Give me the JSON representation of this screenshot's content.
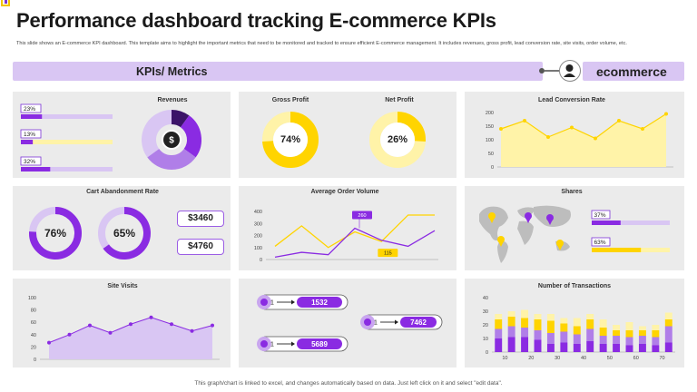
{
  "header": {
    "title": "Performance dashboard tracking E-commerce KPIs",
    "description": "This slide shows an E-commerce KPI dashboard. This template aims to highlight the important metrics that need to be monitored and tracked to ensure efficient E-commerce management.  It includes revenues, gross profit, lead conversion rate, site visits, order volume, etc.",
    "left_banner": "KPIs/ Metrics",
    "right_banner": "ecommerce"
  },
  "colors": {
    "purple": "#8a2be2",
    "dark_purple": "#5a1a9e",
    "lavender": "#d9c6f3",
    "yellow": "#ffd400",
    "light_yellow": "#fff3a8",
    "panel": "#ebebeb"
  },
  "revenues": {
    "title": "Revenues",
    "bars": [
      {
        "label": "23%",
        "value": 23,
        "color": "#8a2be2",
        "track": "#d9c6f3"
      },
      {
        "label": "13%",
        "value": 13,
        "color": "#8a2be2",
        "track": "#fff3a8"
      },
      {
        "label": "32%",
        "value": 32,
        "color": "#8a2be2",
        "track": "#d9c6f3"
      }
    ],
    "donut_values": [
      10,
      25,
      30,
      35
    ],
    "donut_colors": [
      "#3b1368",
      "#8a2be2",
      "#b07ee8",
      "#d9c6f3"
    ],
    "icon": "money-bag-icon"
  },
  "gross_profit": {
    "title": "Gross Profit",
    "label": "74%",
    "value": 74
  },
  "net_profit": {
    "title": "Net Profit",
    "label": "26%",
    "value": 26
  },
  "lead_conversion": {
    "title": "Lead Conversion  Rate",
    "type": "area",
    "y_ticks": [
      "0",
      "50",
      "100",
      "150",
      "200"
    ],
    "ylim": [
      0,
      200
    ],
    "values": [
      140,
      170,
      110,
      145,
      105,
      170,
      140,
      195
    ]
  },
  "cart_abandonment": {
    "title": "Cart Abandonment  Rate",
    "rings": [
      {
        "label": "76%",
        "value": 76
      },
      {
        "label": "65%",
        "value": 65
      }
    ],
    "boxes": [
      "$3460",
      "$4760"
    ]
  },
  "avg_order_volume": {
    "title": "Average Order Volume",
    "type": "line",
    "y_ticks": [
      "0",
      "100",
      "200",
      "300",
      "400"
    ],
    "ylim": [
      0,
      400
    ],
    "series": [
      {
        "name": "yellow",
        "color": "#ffd400",
        "values": [
          110,
          280,
          100,
          230,
          150,
          370,
          370
        ]
      },
      {
        "name": "purple",
        "color": "#8a2be2",
        "values": [
          20,
          60,
          40,
          260,
          160,
          110,
          240
        ]
      }
    ],
    "callouts": [
      "260",
      "115"
    ]
  },
  "shares": {
    "title": "Shares",
    "bars": [
      {
        "label": "37%",
        "value": 37,
        "color": "#8a2be2",
        "track": "#d9c6f3"
      },
      {
        "label": "63%",
        "value": 63,
        "color": "#ffd400",
        "track": "#fff3a8"
      }
    ]
  },
  "site_visits": {
    "title": "Site Visits",
    "type": "area",
    "y_ticks": [
      "0",
      "20",
      "40",
      "60",
      "80",
      "100"
    ],
    "ylim": [
      0,
      100
    ],
    "values": [
      27,
      40,
      55,
      43,
      57,
      68,
      57,
      46,
      55
    ]
  },
  "order_flow": {
    "values": [
      "1532",
      "7462",
      "5689"
    ],
    "start_label": "1"
  },
  "transactions": {
    "title": "Number of Transactions",
    "type": "stacked-bar",
    "y_ticks": [
      "0",
      "10",
      "20",
      "30",
      "40"
    ],
    "ylim": [
      0,
      40
    ],
    "categories": [
      "10",
      "20",
      "30",
      "40",
      "50",
      "60",
      "70"
    ],
    "series": [
      {
        "name": "s1",
        "color": "#8a2be2",
        "values": [
          10,
          11,
          11,
          9,
          6,
          7,
          6,
          8,
          6,
          6,
          5,
          6,
          5,
          7
        ]
      },
      {
        "name": "s2",
        "color": "#b07ee8",
        "values": [
          7,
          8,
          7,
          7,
          8,
          8,
          7,
          9,
          6,
          6,
          6,
          6,
          6,
          12
        ]
      },
      {
        "name": "s3",
        "color": "#ffd400",
        "values": [
          7,
          7,
          7,
          8,
          9,
          6,
          6,
          7,
          6,
          4,
          5,
          4,
          5,
          5
        ]
      },
      {
        "name": "s4",
        "color": "#fff3a8",
        "values": [
          4,
          4,
          6,
          4,
          5,
          4,
          6,
          4,
          6,
          4,
          6,
          3,
          4,
          5
        ]
      }
    ]
  },
  "footer": "This graph/chart is linked to excel,  and changes automatically based on data. Just left click on it and select \"edit data\"."
}
